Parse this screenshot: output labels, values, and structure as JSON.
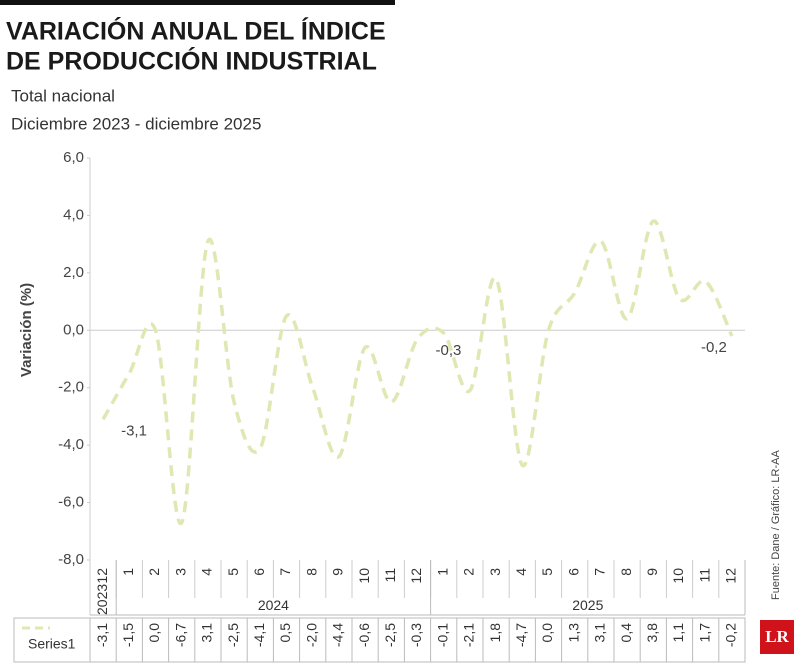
{
  "chart_data": {
    "type": "line",
    "title_lines": [
      "VARIACIÓN ANUAL DEL ÍNDICE",
      "DE PRODUCCIÓN INDUSTRIAL"
    ],
    "subtitle_lines": [
      "Total nacional",
      "Diciembre 2023 - diciembre 2025"
    ],
    "ylabel": "Variación (%)",
    "source": "Fuente: Dane / Gráfico: LR-AA",
    "logo": "LR",
    "category_groups": [
      {
        "label": "2023",
        "categories": [
          "12"
        ]
      },
      {
        "label": "2024",
        "categories": [
          "1",
          "2",
          "3",
          "4",
          "5",
          "6",
          "7",
          "8",
          "9",
          "10",
          "11",
          "12"
        ]
      },
      {
        "label": "2025",
        "categories": [
          "1",
          "2",
          "3",
          "4",
          "5",
          "6",
          "7",
          "8",
          "9",
          "10",
          "11",
          "12"
        ]
      }
    ],
    "series": [
      {
        "name": "Series1",
        "color": "#dfe8b2",
        "values": [
          -3.1,
          -1.5,
          0.0,
          -6.7,
          3.1,
          -2.5,
          -4.1,
          0.5,
          -2.0,
          -4.4,
          -0.6,
          -2.5,
          -0.3,
          -0.1,
          -2.1,
          1.8,
          -4.7,
          0.0,
          1.3,
          3.1,
          0.4,
          3.8,
          1.1,
          1.7,
          -0.2
        ],
        "value_labels": [
          "-3,1",
          "-1,5",
          "0,0",
          "-6,7",
          "3,1",
          "-2,5",
          "-4,1",
          "0,5",
          "-2,0",
          "-4,4",
          "-0,6",
          "-2,5",
          "-0,3",
          "-0,1",
          "-2,1",
          "1,8",
          "-4,7",
          "0,0",
          "1,3",
          "3,1",
          "0,4",
          "3,8",
          "1,1",
          "1,7",
          "-0,2"
        ],
        "point_labels": [
          "-3,1",
          null,
          null,
          null,
          null,
          null,
          null,
          null,
          null,
          null,
          null,
          null,
          "-0,3",
          null,
          null,
          null,
          null,
          null,
          null,
          null,
          null,
          null,
          null,
          null,
          "-0,2"
        ]
      }
    ],
    "ylim": [
      -8,
      6
    ],
    "yticks": [
      {
        "value": -8,
        "label": "-8,0"
      },
      {
        "value": -6,
        "label": "-6,0"
      },
      {
        "value": -4,
        "label": "-4,0"
      },
      {
        "value": -2,
        "label": "-2,0"
      },
      {
        "value": 0,
        "label": "0,0"
      },
      {
        "value": 2,
        "label": "2,0"
      },
      {
        "value": 4,
        "label": "4,0"
      },
      {
        "value": 6,
        "label": "6,0"
      }
    ],
    "grid": false
  }
}
